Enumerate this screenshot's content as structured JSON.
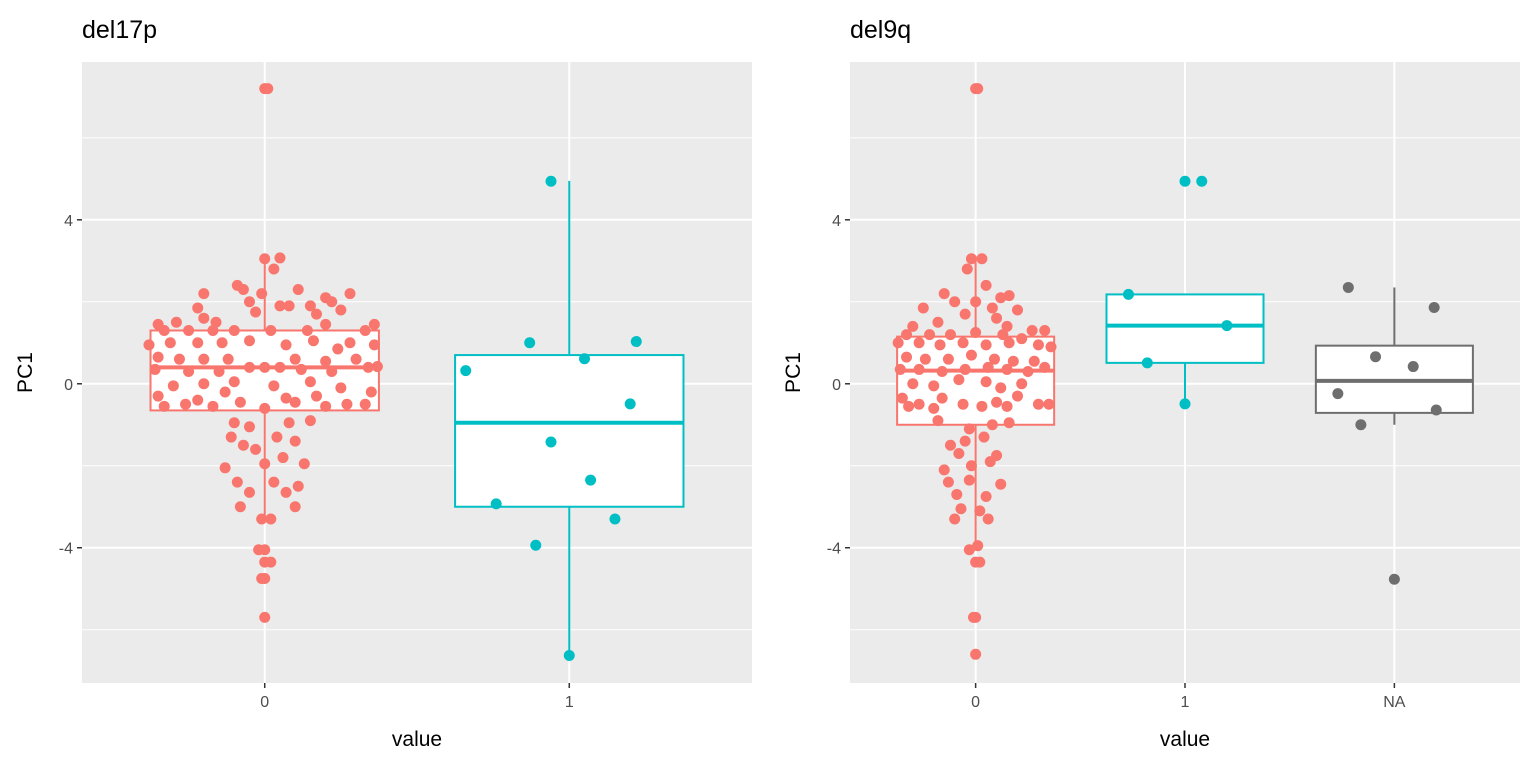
{
  "chart_data": [
    {
      "type": "boxplot",
      "title": "del17p",
      "xlabel": "value",
      "ylabel": "PC1",
      "ylim": [
        -7.3,
        7.85
      ],
      "yticks": [
        -4,
        0,
        4
      ],
      "ytick_labels": [
        "-4",
        "0",
        "4"
      ],
      "categories": [
        "0",
        "1"
      ],
      "colors": [
        "#F8766D",
        "#00BFC4"
      ],
      "boxes": [
        {
          "q1": -0.65,
          "median": 0.4,
          "q3": 1.3,
          "whisker_low": -3.3,
          "whisker_high": 3.1
        },
        {
          "q1": -3.0,
          "median": -0.95,
          "q3": 0.7,
          "whisker_low": -6.6,
          "whisker_high": 4.95
        }
      ],
      "points": [
        [
          [
            0,
            7.2
          ],
          [
            0.01,
            7.2
          ],
          [
            0,
            3.05
          ],
          [
            0.05,
            3.07
          ],
          [
            0.03,
            2.8
          ],
          [
            -0.09,
            2.4
          ],
          [
            -0.07,
            2.3
          ],
          [
            0.11,
            2.3
          ],
          [
            -0.01,
            2.2
          ],
          [
            -0.2,
            2.2
          ],
          [
            0.2,
            2.1
          ],
          [
            0.22,
            2.0
          ],
          [
            -0.05,
            2.0
          ],
          [
            0.15,
            1.9
          ],
          [
            -0.22,
            1.85
          ],
          [
            0.05,
            1.9
          ],
          [
            -0.16,
            1.5
          ],
          [
            0.08,
            1.9
          ],
          [
            -0.03,
            1.75
          ],
          [
            0.28,
            2.2
          ],
          [
            0.25,
            1.8
          ],
          [
            -0.29,
            1.5
          ],
          [
            -0.2,
            1.6
          ],
          [
            0.17,
            1.7
          ],
          [
            -0.35,
            1.45
          ],
          [
            -0.33,
            1.3
          ],
          [
            -0.25,
            1.3
          ],
          [
            -0.17,
            1.3
          ],
          [
            -0.1,
            1.3
          ],
          [
            0.02,
            1.3
          ],
          [
            0.14,
            1.3
          ],
          [
            0.2,
            1.45
          ],
          [
            0.33,
            1.3
          ],
          [
            0.36,
            1.45
          ],
          [
            -0.38,
            0.95
          ],
          [
            -0.31,
            1.0
          ],
          [
            -0.22,
            1.0
          ],
          [
            -0.14,
            1.0
          ],
          [
            -0.05,
            1.05
          ],
          [
            0.07,
            0.95
          ],
          [
            0.16,
            1.05
          ],
          [
            0.24,
            0.85
          ],
          [
            0.28,
            1.0
          ],
          [
            0.36,
            0.95
          ],
          [
            -0.35,
            0.65
          ],
          [
            -0.28,
            0.6
          ],
          [
            -0.2,
            0.6
          ],
          [
            -0.12,
            0.6
          ],
          [
            0.0,
            0.4
          ],
          [
            0.1,
            0.6
          ],
          [
            0.2,
            0.55
          ],
          [
            0.3,
            0.6
          ],
          [
            0.37,
            0.42
          ],
          [
            -0.36,
            0.35
          ],
          [
            -0.25,
            0.3
          ],
          [
            -0.15,
            0.3
          ],
          [
            -0.05,
            0.4
          ],
          [
            0.05,
            0.4
          ],
          [
            0.12,
            0.35
          ],
          [
            0.22,
            0.3
          ],
          [
            0.34,
            0.4
          ],
          [
            -0.3,
            -0.05
          ],
          [
            -0.2,
            0.0
          ],
          [
            -0.1,
            0.05
          ],
          [
            0.03,
            -0.05
          ],
          [
            0.15,
            0.05
          ],
          [
            0.25,
            -0.1
          ],
          [
            0.35,
            -0.2
          ],
          [
            -0.35,
            -0.3
          ],
          [
            -0.22,
            -0.4
          ],
          [
            -0.13,
            -0.2
          ],
          [
            -0.08,
            -0.45
          ],
          [
            0.0,
            -0.6
          ],
          [
            0.07,
            -0.35
          ],
          [
            0.17,
            -0.3
          ],
          [
            0.27,
            -0.5
          ],
          [
            0.33,
            -0.5
          ],
          [
            -0.33,
            -0.55
          ],
          [
            -0.26,
            -0.5
          ],
          [
            -0.17,
            -0.55
          ],
          [
            0.1,
            -0.45
          ],
          [
            0.2,
            -0.55
          ],
          [
            -0.1,
            -0.95
          ],
          [
            -0.05,
            -1.05
          ],
          [
            0.08,
            -0.95
          ],
          [
            0.15,
            -0.9
          ],
          [
            -0.11,
            -1.3
          ],
          [
            0.04,
            -1.3
          ],
          [
            -0.07,
            -1.5
          ],
          [
            0.1,
            -1.4
          ],
          [
            -0.03,
            -1.6
          ],
          [
            0.13,
            -1.95
          ],
          [
            -0.13,
            -2.05
          ],
          [
            0.0,
            -1.95
          ],
          [
            0.06,
            -1.8
          ],
          [
            -0.09,
            -2.4
          ],
          [
            0.03,
            -2.4
          ],
          [
            0.11,
            -2.5
          ],
          [
            -0.05,
            -2.65
          ],
          [
            0.07,
            -2.65
          ],
          [
            -0.08,
            -3.0
          ],
          [
            0.1,
            -3.0
          ],
          [
            -0.01,
            -3.3
          ],
          [
            0.02,
            -3.3
          ],
          [
            -0.02,
            -4.05
          ],
          [
            0.0,
            -4.05
          ],
          [
            0.0,
            -4.35
          ],
          [
            0.02,
            -4.35
          ],
          [
            -0.01,
            -4.75
          ],
          [
            0.0,
            -4.75
          ],
          [
            0.0,
            -5.7
          ]
        ],
        [
          [
            -0.06,
            4.94
          ],
          [
            -0.13,
            1.0
          ],
          [
            0.22,
            1.03
          ],
          [
            0.05,
            0.61
          ],
          [
            -0.34,
            0.32
          ],
          [
            0.2,
            -0.49
          ],
          [
            -0.06,
            -1.42
          ],
          [
            0.07,
            -2.35
          ],
          [
            -0.24,
            -2.93
          ],
          [
            0.15,
            -3.3
          ],
          [
            -0.11,
            -3.94
          ],
          [
            0,
            -6.63
          ]
        ]
      ]
    },
    {
      "type": "boxplot",
      "title": "del9q",
      "xlabel": "value",
      "ylabel": "PC1",
      "ylim": [
        -7.3,
        7.85
      ],
      "yticks": [
        -4,
        0,
        4
      ],
      "ytick_labels": [
        "-4",
        "0",
        "4"
      ],
      "categories": [
        "0",
        "1",
        "NA"
      ],
      "colors": [
        "#F8766D",
        "#00BFC4",
        "#6E6E6E"
      ],
      "boxes": [
        {
          "q1": -1.0,
          "median": 0.32,
          "q3": 1.15,
          "whisker_low": -4.0,
          "whisker_high": 3.05
        },
        {
          "q1": 0.51,
          "median": 1.42,
          "q3": 2.18,
          "whisker_low": -0.49,
          "whisker_high": 2.18
        },
        {
          "q1": -0.71,
          "median": 0.07,
          "q3": 0.93,
          "whisker_low": -1.0,
          "whisker_high": 2.35
        }
      ],
      "points": [
        [
          [
            0,
            7.2
          ],
          [
            0.01,
            7.2
          ],
          [
            -0.02,
            3.05
          ],
          [
            0.03,
            3.05
          ],
          [
            -0.04,
            2.8
          ],
          [
            0.05,
            2.4
          ],
          [
            -0.15,
            2.2
          ],
          [
            0.12,
            2.1
          ],
          [
            0.16,
            2.15
          ],
          [
            -0.1,
            2.0
          ],
          [
            0.0,
            2.0
          ],
          [
            0.08,
            1.85
          ],
          [
            -0.25,
            1.85
          ],
          [
            0.2,
            1.8
          ],
          [
            -0.05,
            1.7
          ],
          [
            0.1,
            1.6
          ],
          [
            -0.18,
            1.5
          ],
          [
            0.15,
            1.4
          ],
          [
            -0.3,
            1.4
          ],
          [
            0.27,
            1.3
          ],
          [
            0.33,
            1.3
          ],
          [
            -0.33,
            1.2
          ],
          [
            -0.22,
            1.2
          ],
          [
            -0.12,
            1.2
          ],
          [
            0.0,
            1.25
          ],
          [
            0.13,
            1.2
          ],
          [
            0.22,
            1.1
          ],
          [
            -0.37,
            1.0
          ],
          [
            -0.27,
            1.0
          ],
          [
            -0.17,
            0.95
          ],
          [
            -0.06,
            1.0
          ],
          [
            0.05,
            0.95
          ],
          [
            0.16,
            1.0
          ],
          [
            0.3,
            0.95
          ],
          [
            0.36,
            0.9
          ],
          [
            -0.33,
            0.65
          ],
          [
            -0.24,
            0.6
          ],
          [
            -0.13,
            0.6
          ],
          [
            -0.02,
            0.7
          ],
          [
            0.09,
            0.6
          ],
          [
            0.18,
            0.55
          ],
          [
            0.28,
            0.55
          ],
          [
            -0.36,
            0.35
          ],
          [
            -0.27,
            0.35
          ],
          [
            -0.16,
            0.3
          ],
          [
            -0.05,
            0.35
          ],
          [
            0.06,
            0.4
          ],
          [
            0.15,
            0.35
          ],
          [
            0.25,
            0.3
          ],
          [
            0.33,
            0.4
          ],
          [
            -0.3,
            0.0
          ],
          [
            -0.2,
            -0.05
          ],
          [
            -0.08,
            0.1
          ],
          [
            0.05,
            0.05
          ],
          [
            0.12,
            -0.1
          ],
          [
            0.22,
            0.0
          ],
          [
            -0.35,
            -0.35
          ],
          [
            -0.27,
            -0.5
          ],
          [
            -0.16,
            -0.35
          ],
          [
            -0.06,
            -0.5
          ],
          [
            0.03,
            -0.55
          ],
          [
            0.1,
            -0.45
          ],
          [
            0.2,
            -0.3
          ],
          [
            0.3,
            -0.5
          ],
          [
            0.35,
            -0.5
          ],
          [
            -0.32,
            -0.55
          ],
          [
            -0.2,
            -0.6
          ],
          [
            0.15,
            -0.55
          ],
          [
            -0.18,
            -0.9
          ],
          [
            -0.03,
            -1.1
          ],
          [
            0.08,
            -1.0
          ],
          [
            0.16,
            -0.95
          ],
          [
            -0.12,
            -1.5
          ],
          [
            -0.05,
            -1.4
          ],
          [
            0.04,
            -1.3
          ],
          [
            -0.08,
            -1.7
          ],
          [
            0.1,
            -1.75
          ],
          [
            -0.15,
            -2.1
          ],
          [
            -0.02,
            -2.0
          ],
          [
            0.07,
            -1.9
          ],
          [
            -0.13,
            -2.4
          ],
          [
            -0.03,
            -2.35
          ],
          [
            0.12,
            -2.45
          ],
          [
            -0.09,
            -2.7
          ],
          [
            0.05,
            -2.75
          ],
          [
            -0.07,
            -3.05
          ],
          [
            0.02,
            -3.1
          ],
          [
            0.06,
            -3.3
          ],
          [
            -0.1,
            -3.3
          ],
          [
            -0.03,
            -4.05
          ],
          [
            0.01,
            -3.95
          ],
          [
            0.0,
            -4.35
          ],
          [
            0.02,
            -4.35
          ],
          [
            -0.01,
            -5.7
          ],
          [
            0.0,
            -5.7
          ],
          [
            0.0,
            -6.6
          ]
        ],
        [
          [
            0,
            4.94
          ],
          [
            0.08,
            4.94
          ],
          [
            -0.27,
            2.18
          ],
          [
            0.2,
            1.42
          ],
          [
            -0.18,
            0.51
          ],
          [
            0,
            -0.49
          ]
        ],
        [
          [
            -0.22,
            2.35
          ],
          [
            0.19,
            1.86
          ],
          [
            -0.09,
            0.66
          ],
          [
            0.09,
            0.42
          ],
          [
            -0.27,
            -0.24
          ],
          [
            0.2,
            -0.64
          ],
          [
            -0.16,
            -1.0
          ],
          [
            0,
            -4.77
          ]
        ]
      ]
    }
  ]
}
